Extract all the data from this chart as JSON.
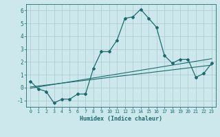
{
  "title": "",
  "xlabel": "Humidex (Indice chaleur)",
  "background_color": "#cce8ec",
  "plot_bg_color": "#cce8ec",
  "grid_color": "#b0cdd1",
  "line_color": "#1a6b6b",
  "xlim": [
    -0.5,
    23.5
  ],
  "ylim": [
    -1.5,
    6.5
  ],
  "ytick_values": [
    -1,
    0,
    1,
    2,
    3,
    4,
    5,
    6
  ],
  "main_x": [
    0,
    1,
    2,
    3,
    4,
    5,
    6,
    7,
    8,
    9,
    10,
    11,
    12,
    13,
    14,
    15,
    16,
    17,
    18,
    19,
    20,
    21,
    22,
    23
  ],
  "main_y": [
    0.5,
    -0.1,
    -0.3,
    -1.2,
    -0.9,
    -0.9,
    -0.5,
    -0.5,
    1.5,
    2.8,
    2.8,
    3.7,
    5.4,
    5.5,
    6.1,
    5.4,
    4.7,
    2.5,
    1.9,
    2.2,
    2.2,
    0.8,
    1.1,
    1.9
  ],
  "trend1_x": [
    0,
    23
  ],
  "trend1_y": [
    -0.05,
    2.25
  ],
  "trend2_x": [
    0,
    23
  ],
  "trend2_y": [
    0.05,
    1.75
  ],
  "xtick_positions": [
    0,
    1,
    2,
    3,
    4,
    5,
    6,
    7,
    8,
    9,
    10,
    11,
    12,
    13,
    14,
    15,
    16,
    17,
    18,
    19,
    20,
    21,
    22,
    23
  ],
  "xtick_labels": [
    "0",
    "1",
    "2",
    "3",
    "4",
    "5",
    "6",
    "7",
    "8",
    "9",
    "10",
    "11",
    "12",
    "13",
    "14",
    "15",
    "16",
    "17",
    "18",
    "19",
    "20",
    "21",
    "22",
    "23"
  ]
}
